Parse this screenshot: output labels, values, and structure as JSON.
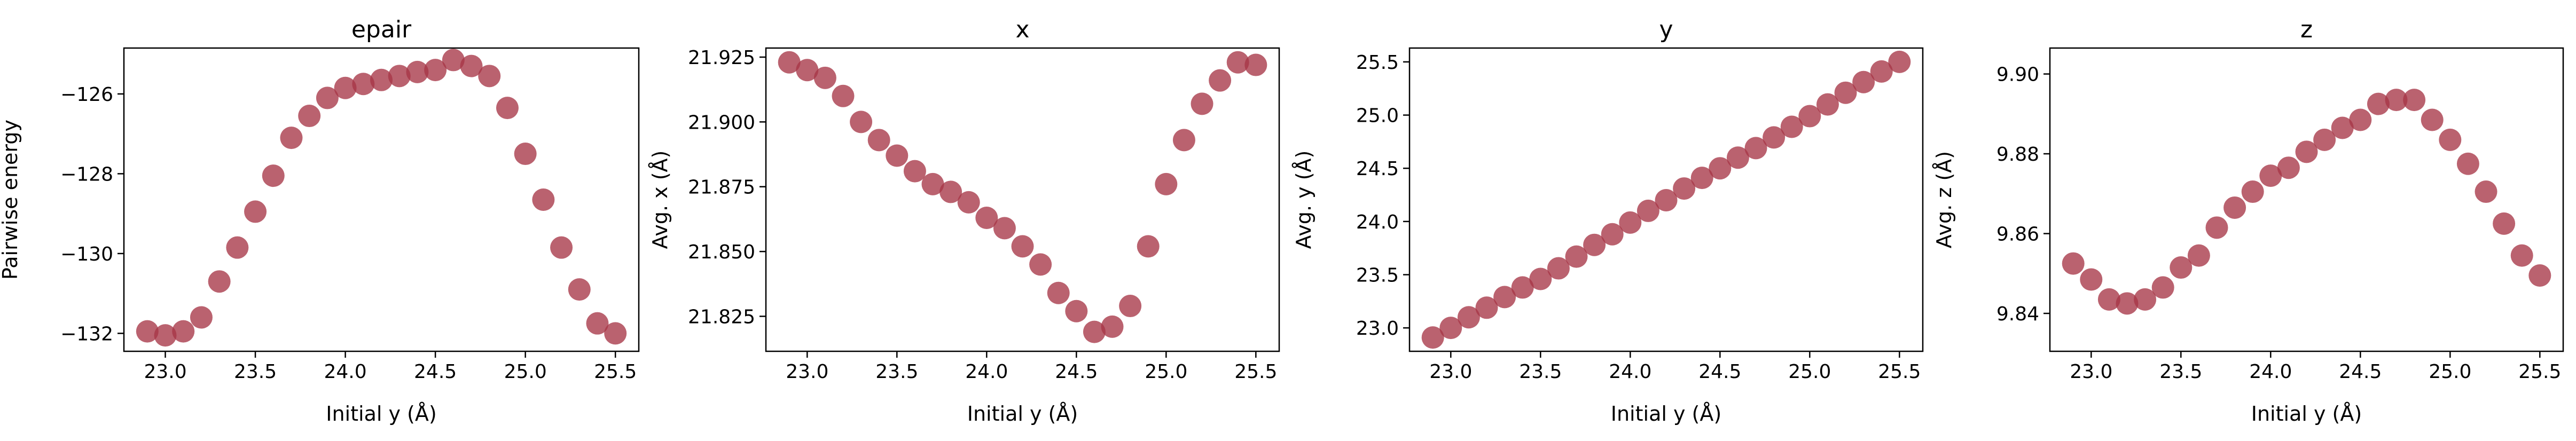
{
  "chart_data": [
    {
      "type": "scatter",
      "title": "epair",
      "xlabel": "Initial y (Å)",
      "ylabel": "Pairwise energy",
      "xlim": [
        22.77,
        25.63
      ],
      "ylim": [
        -132.45,
        -124.85
      ],
      "xticks": [
        23.0,
        23.5,
        24.0,
        24.5,
        25.0,
        25.5
      ],
      "xtick_labels": [
        "23.0",
        "23.5",
        "24.0",
        "24.5",
        "25.0",
        "25.5"
      ],
      "yticks": [
        -132,
        -130,
        -128,
        -126
      ],
      "ytick_labels": [
        "−132",
        "−130",
        "−128",
        "−126"
      ],
      "grid": false,
      "marker_color": "#a63646",
      "x": [
        22.9,
        23.0,
        23.1,
        23.2,
        23.3,
        23.4,
        23.5,
        23.6,
        23.7,
        23.8,
        23.9,
        24.0,
        24.1,
        24.2,
        24.3,
        24.4,
        24.5,
        24.6,
        24.7,
        24.8,
        24.9,
        25.0,
        25.1,
        25.2,
        25.3,
        25.4,
        25.5
      ],
      "y": [
        -131.95,
        -132.05,
        -131.95,
        -131.6,
        -130.7,
        -129.85,
        -128.95,
        -128.05,
        -127.1,
        -126.55,
        -126.1,
        -125.85,
        -125.75,
        -125.65,
        -125.55,
        -125.45,
        -125.4,
        -125.15,
        -125.3,
        -125.55,
        -126.35,
        -127.5,
        -128.65,
        -129.85,
        -130.9,
        -131.75,
        -132.0
      ]
    },
    {
      "type": "scatter",
      "title": "x",
      "xlabel": "Initial y (Å)",
      "ylabel": "Avg. x (Å)",
      "xlim": [
        22.77,
        25.63
      ],
      "ylim": [
        21.8115,
        21.9285
      ],
      "xticks": [
        23.0,
        23.5,
        24.0,
        24.5,
        25.0,
        25.5
      ],
      "xtick_labels": [
        "23.0",
        "23.5",
        "24.0",
        "24.5",
        "25.0",
        "25.5"
      ],
      "yticks": [
        21.825,
        21.85,
        21.875,
        21.9,
        21.925
      ],
      "ytick_labels": [
        "21.825",
        "21.850",
        "21.875",
        "21.900",
        "21.925"
      ],
      "grid": false,
      "marker_color": "#a63646",
      "x": [
        22.9,
        23.0,
        23.1,
        23.2,
        23.3,
        23.4,
        23.5,
        23.6,
        23.7,
        23.8,
        23.9,
        24.0,
        24.1,
        24.2,
        24.3,
        24.4,
        24.5,
        24.6,
        24.7,
        24.8,
        24.9,
        25.0,
        25.1,
        25.2,
        25.3,
        25.4,
        25.5
      ],
      "y": [
        21.923,
        21.92,
        21.917,
        21.91,
        21.9,
        21.893,
        21.887,
        21.881,
        21.876,
        21.873,
        21.869,
        21.863,
        21.859,
        21.852,
        21.845,
        21.834,
        21.827,
        21.819,
        21.821,
        21.829,
        21.852,
        21.876,
        21.893,
        21.907,
        21.916,
        21.923,
        21.922
      ]
    },
    {
      "type": "scatter",
      "title": "y",
      "xlabel": "Initial y (Å)",
      "ylabel": "Avg. y (Å)",
      "xlim": [
        22.77,
        25.63
      ],
      "ylim": [
        22.78,
        25.63
      ],
      "xticks": [
        23.0,
        23.5,
        24.0,
        24.5,
        25.0,
        25.5
      ],
      "xtick_labels": [
        "23.0",
        "23.5",
        "24.0",
        "24.5",
        "25.0",
        "25.5"
      ],
      "yticks": [
        23.0,
        23.5,
        24.0,
        24.5,
        25.0,
        25.5
      ],
      "ytick_labels": [
        "23.0",
        "23.5",
        "24.0",
        "24.5",
        "25.0",
        "25.5"
      ],
      "grid": false,
      "marker_color": "#a63646",
      "x": [
        22.9,
        23.0,
        23.1,
        23.2,
        23.3,
        23.4,
        23.5,
        23.6,
        23.7,
        23.8,
        23.9,
        24.0,
        24.1,
        24.2,
        24.3,
        24.4,
        24.5,
        24.6,
        24.7,
        24.8,
        24.9,
        25.0,
        25.1,
        25.2,
        25.3,
        25.4,
        25.5
      ],
      "y": [
        22.91,
        23.0,
        23.1,
        23.19,
        23.29,
        23.38,
        23.46,
        23.56,
        23.67,
        23.78,
        23.88,
        23.99,
        24.1,
        24.2,
        24.31,
        24.41,
        24.5,
        24.6,
        24.69,
        24.79,
        24.89,
        24.99,
        25.1,
        25.21,
        25.31,
        25.41,
        25.5
      ]
    },
    {
      "type": "scatter",
      "title": "z",
      "xlabel": "Initial y (Å)",
      "ylabel": "Avg. z (Å)",
      "xlim": [
        22.77,
        25.63
      ],
      "ylim": [
        9.8305,
        9.9065
      ],
      "xticks": [
        23.0,
        23.5,
        24.0,
        24.5,
        25.0,
        25.5
      ],
      "xtick_labels": [
        "23.0",
        "23.5",
        "24.0",
        "24.5",
        "25.0",
        "25.5"
      ],
      "yticks": [
        9.84,
        9.86,
        9.88,
        9.9
      ],
      "ytick_labels": [
        "9.84",
        "9.86",
        "9.88",
        "9.90"
      ],
      "grid": false,
      "marker_color": "#a63646",
      "x": [
        22.9,
        23.0,
        23.1,
        23.2,
        23.3,
        23.4,
        23.5,
        23.6,
        23.7,
        23.8,
        23.9,
        24.0,
        24.1,
        24.2,
        24.3,
        24.4,
        24.5,
        24.6,
        24.7,
        24.8,
        24.9,
        25.0,
        25.1,
        25.2,
        25.3,
        25.4,
        25.5
      ],
      "y": [
        9.8525,
        9.8485,
        9.8435,
        9.8425,
        9.8435,
        9.8465,
        9.8515,
        9.8545,
        9.8615,
        9.8665,
        9.8705,
        9.8745,
        9.8765,
        9.8805,
        9.8835,
        9.8865,
        9.8885,
        9.8925,
        9.8935,
        9.8935,
        9.8885,
        9.8835,
        9.8775,
        9.8705,
        9.8625,
        9.8545,
        9.8495
      ]
    }
  ]
}
